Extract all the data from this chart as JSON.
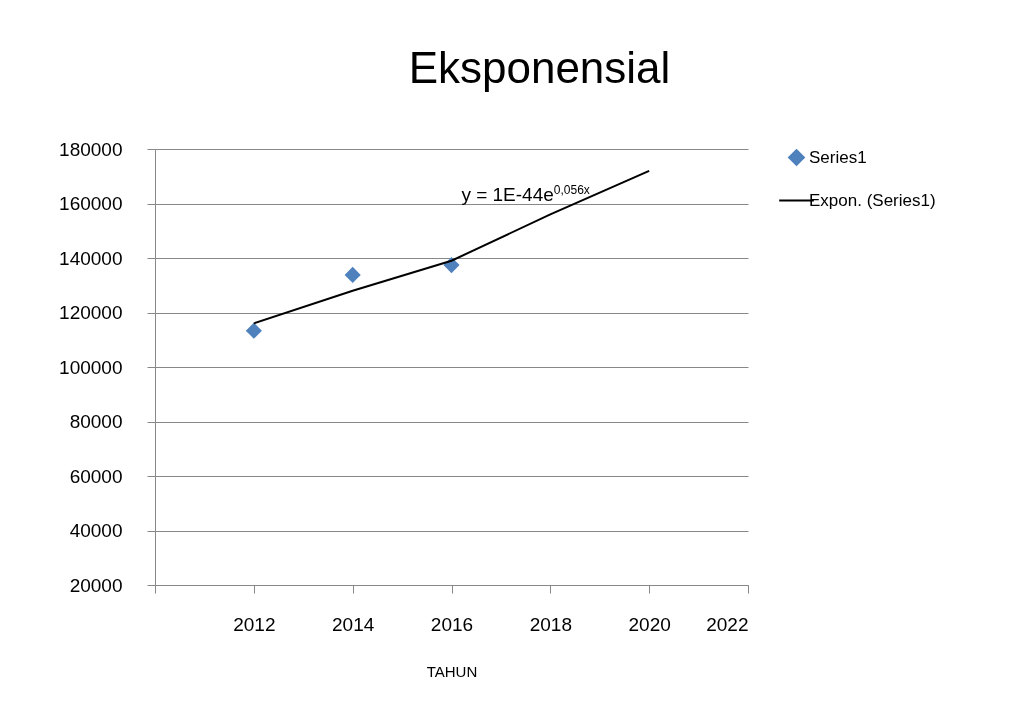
{
  "chart_data": {
    "type": "scatter",
    "title": "Eksponensial",
    "xlabel": "TAHUN",
    "x": [
      2012,
      2014,
      2016
    ],
    "series": [
      {
        "name": "Series1",
        "color": "#4f81bd",
        "marker": "diamond",
        "values": [
          113300,
          133800,
          137400
        ]
      },
      {
        "name": "Expon. (Series1)",
        "type": "line",
        "marker": "none",
        "color": "#000000",
        "x": [
          2012,
          2014,
          2016,
          2018,
          2020
        ],
        "values": [
          116000,
          128000,
          139000,
          156000,
          172000
        ]
      }
    ],
    "xlim": [
      2010,
      2022
    ],
    "xticks": [
      {
        "value": 2010,
        "label": null
      },
      2012,
      2014,
      2016,
      2018,
      2020,
      2022
    ],
    "ylim": [
      20000,
      180000
    ],
    "yticks": [
      20000,
      40000,
      60000,
      80000,
      100000,
      120000,
      140000,
      160000,
      180000
    ],
    "annotations": [
      "y = 1E-44e$^{0,056x}$"
    ],
    "grid": "y",
    "legend": "right"
  }
}
